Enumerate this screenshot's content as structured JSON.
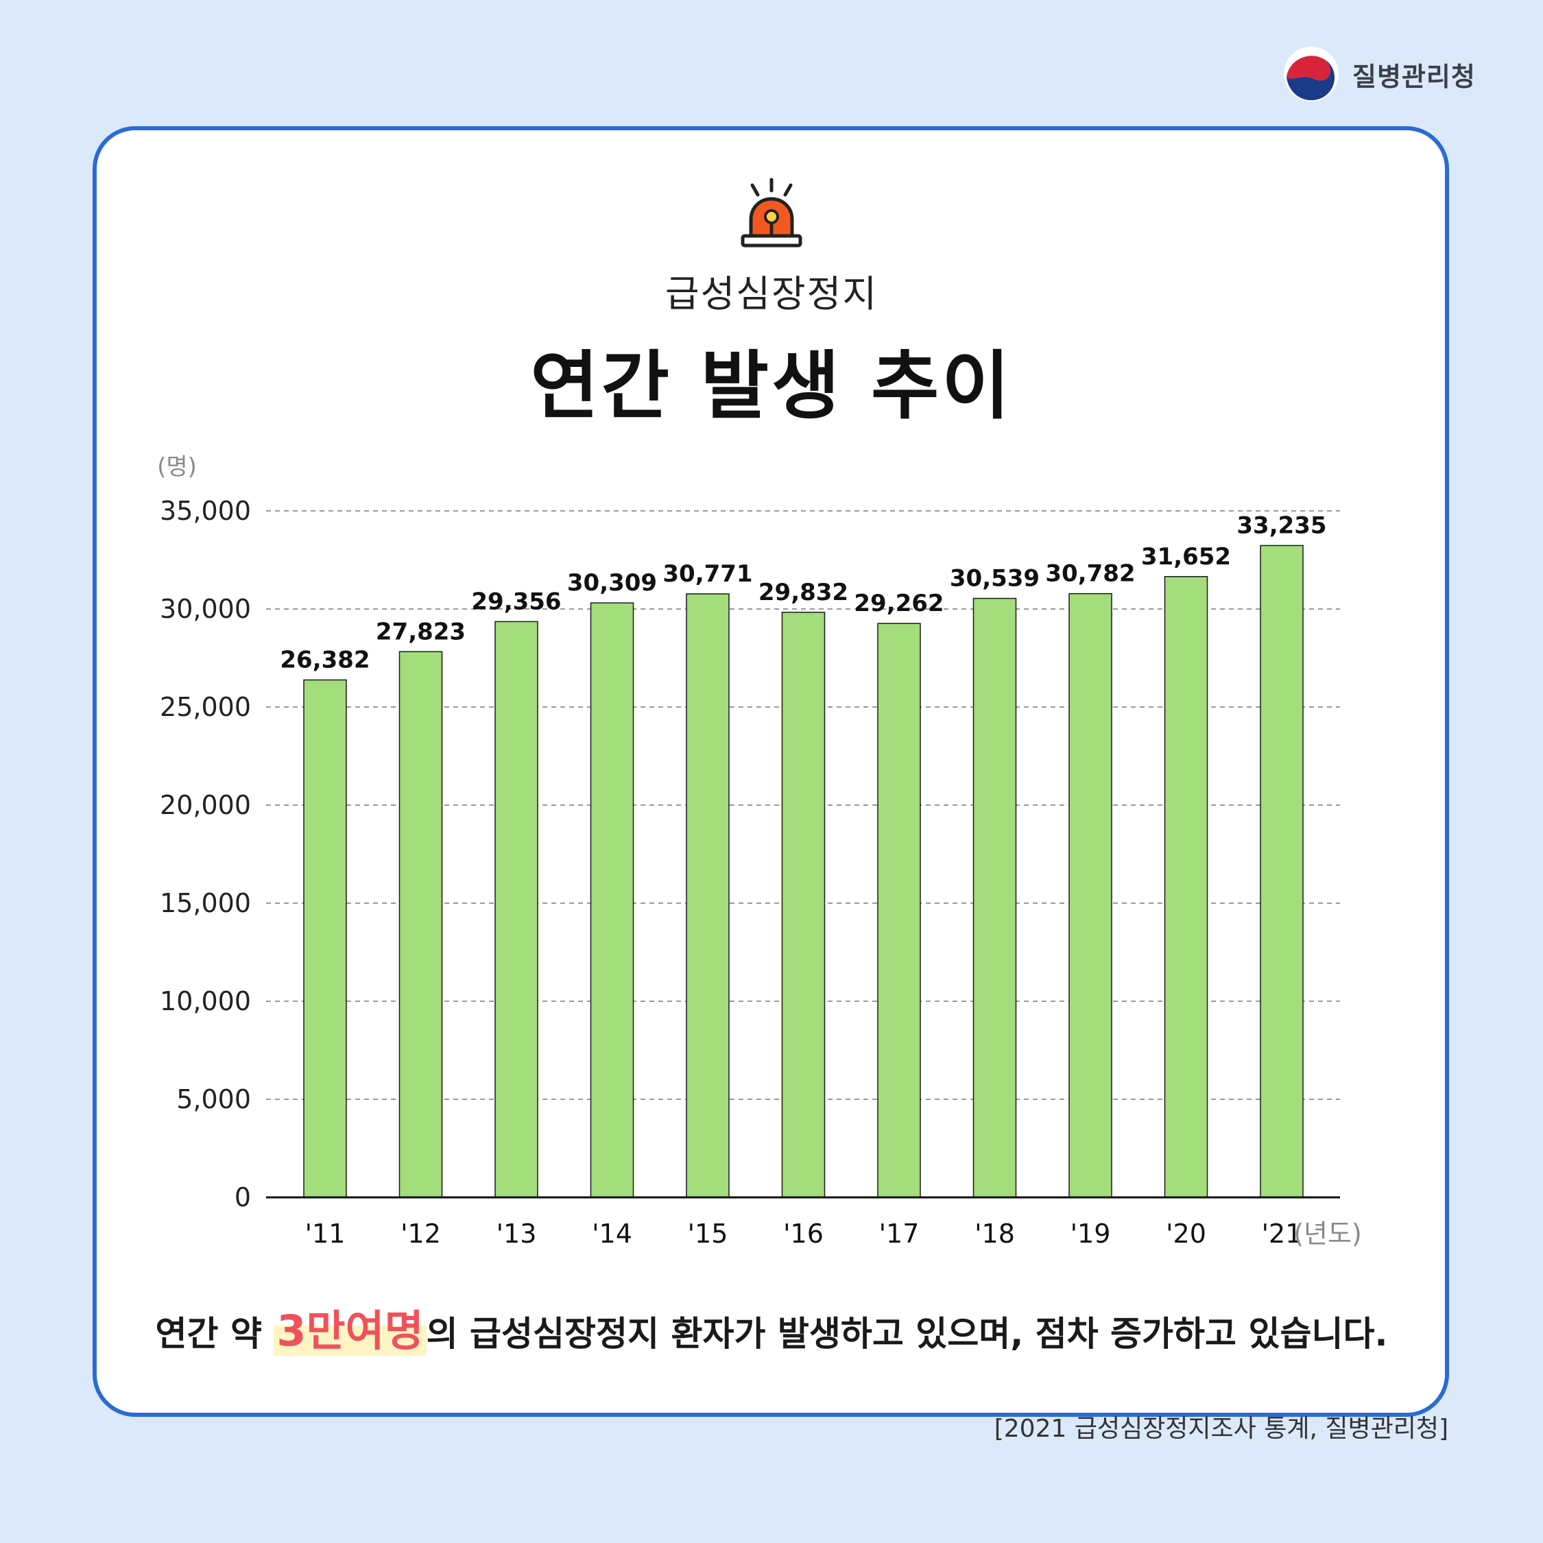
{
  "logo": {
    "text": "질병관리청"
  },
  "header": {
    "subtitle": "급성심장정지",
    "title": "연간 발생 추이"
  },
  "caption": {
    "before": "연간 약 ",
    "highlight": "3만여명",
    "after": "의 급성심장정지 환자가 발생하고 있으며, 점차 증가하고 있습니다."
  },
  "source": "[2021 급성심장정지조사 통계, 질병관리청]",
  "colors": {
    "bar": "#a3dd7c",
    "highlight_text": "#f0515a",
    "card_border": "#2a6bd4"
  },
  "chart_data": {
    "type": "bar",
    "categories": [
      "'11",
      "'12",
      "'13",
      "'14",
      "'15",
      "'16",
      "'17",
      "'18",
      "'19",
      "'20",
      "'21"
    ],
    "values": [
      26382,
      27823,
      29356,
      30309,
      30771,
      29832,
      29262,
      30539,
      30782,
      31652,
      33235
    ],
    "value_labels": [
      "26,382",
      "27,823",
      "29,356",
      "30,309",
      "30,771",
      "29,832",
      "29,262",
      "30,539",
      "30,782",
      "31,652",
      "33,235"
    ],
    "ylabel": "(명)",
    "xlabel": "(년도)",
    "ylim": [
      0,
      35000
    ],
    "yticks": [
      0,
      5000,
      10000,
      15000,
      20000,
      25000,
      30000,
      35000
    ],
    "ytick_labels": [
      "0",
      "5,000",
      "10,000",
      "15,000",
      "20,000",
      "25,000",
      "30,000",
      "35,000"
    ],
    "grid": true
  }
}
